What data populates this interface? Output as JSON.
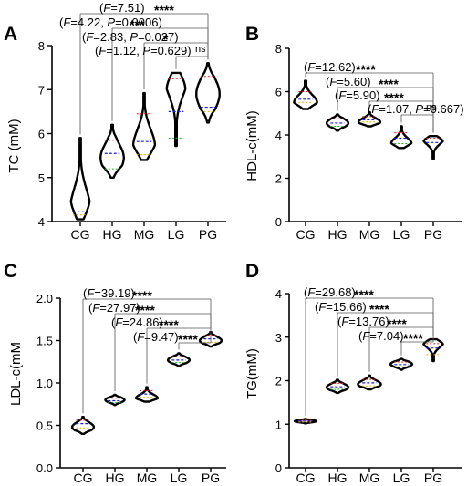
{
  "chart_data": [
    {
      "panel": "A",
      "type": "violin",
      "ylabel": "TC (mM)",
      "ylim": [
        4,
        8
      ],
      "yticks": [
        4,
        5,
        6,
        7,
        8
      ],
      "categories": [
        "CG",
        "HG",
        "MG",
        "LG",
        "PG"
      ],
      "violins": [
        {
          "min": 4.05,
          "max": 5.9,
          "median": 4.22,
          "q1": 4.15,
          "q3": 5.15,
          "peak": 4.25,
          "width": 0.75
        },
        {
          "min": 5.0,
          "max": 6.2,
          "median": 5.55,
          "q1": 5.2,
          "q3": 5.85,
          "peak": 5.45,
          "width": 0.85
        },
        {
          "min": 5.4,
          "max": 6.92,
          "median": 5.82,
          "q1": 5.52,
          "q3": 6.45,
          "peak": 5.7,
          "width": 0.8
        },
        {
          "min": 5.72,
          "max": 7.38,
          "median": 6.5,
          "q1": 5.9,
          "q3": 7.25,
          "peak": 7.3,
          "width": 0.85
        },
        {
          "min": 6.25,
          "max": 7.6,
          "median": 6.6,
          "q1": 6.5,
          "q3": 7.3,
          "peak": 6.9,
          "width": 0.85
        }
      ],
      "comparisons": [
        {
          "from": 0,
          "to": 4,
          "stat_prefix": "(",
          "f_label": "F",
          "f_text": "=7.51)",
          "sig": "****"
        },
        {
          "from": 1,
          "to": 4,
          "stat_prefix": "(",
          "f_label": "F",
          "f_text": "=4.22, ",
          "p_label": "P",
          "p_text": "=0.0006)",
          "sig": "***"
        },
        {
          "from": 2,
          "to": 4,
          "stat_prefix": "(",
          "f_label": "F",
          "f_text": "=2.83, ",
          "p_label": "P",
          "p_text": "=0.027)",
          "sig": "*"
        },
        {
          "from": 3,
          "to": 4,
          "stat_prefix": "(",
          "f_label": "F",
          "f_text": "=1.12, ",
          "p_label": "P",
          "p_text": "=0.629)",
          "sig": "ns"
        }
      ]
    },
    {
      "panel": "B",
      "type": "violin",
      "ylabel": "HDL-c(mM)",
      "ylim": [
        0,
        8
      ],
      "yticks": [
        0,
        2,
        4,
        6,
        8
      ],
      "categories": [
        "CG",
        "HG",
        "MG",
        "LG",
        "PG"
      ],
      "violins": [
        {
          "min": 5.2,
          "max": 6.5,
          "median": 5.65,
          "q1": 5.5,
          "q3": 6.0,
          "peak": 5.5,
          "width": 0.9
        },
        {
          "min": 4.2,
          "max": 4.95,
          "median": 4.55,
          "q1": 4.4,
          "q3": 4.75,
          "peak": 4.55,
          "width": 0.85
        },
        {
          "min": 4.4,
          "max": 5.05,
          "median": 4.7,
          "q1": 4.6,
          "q3": 4.85,
          "peak": 4.6,
          "width": 0.85
        },
        {
          "min": 3.4,
          "max": 4.4,
          "median": 3.85,
          "q1": 3.6,
          "q3": 4.1,
          "peak": 3.6,
          "width": 0.8
        },
        {
          "min": 2.9,
          "max": 3.95,
          "median": 3.65,
          "q1": 3.3,
          "q3": 3.85,
          "peak": 3.85,
          "width": 0.85
        }
      ],
      "comparisons": [
        {
          "from": 0,
          "to": 4,
          "stat_prefix": "(",
          "f_label": "F",
          "f_text": "=12.62)",
          "sig": "****"
        },
        {
          "from": 1,
          "to": 4,
          "stat_prefix": "(",
          "f_label": "F",
          "f_text": "=5.60)",
          "sig": "****"
        },
        {
          "from": 2,
          "to": 4,
          "stat_prefix": "(",
          "f_label": "F",
          "f_text": "=5.90)",
          "sig": "****"
        },
        {
          "from": 3,
          "to": 4,
          "stat_prefix": "(",
          "f_label": "F",
          "f_text": "=1.07, ",
          "p_label": "P",
          "p_text": "=0.667)",
          "sig": "ns"
        }
      ]
    },
    {
      "panel": "C",
      "type": "violin",
      "ylabel": "LDL-c(mM",
      "ylim": [
        0,
        2.0
      ],
      "yticks": [
        0.0,
        0.5,
        1.0,
        1.5,
        2.0
      ],
      "categories": [
        "CG",
        "HG",
        "MG",
        "LG",
        "PG"
      ],
      "violins": [
        {
          "min": 0.4,
          "max": 0.6,
          "median": 0.52,
          "q1": 0.47,
          "q3": 0.56,
          "peak": 0.48,
          "width": 0.85
        },
        {
          "min": 0.74,
          "max": 0.86,
          "median": 0.79,
          "q1": 0.77,
          "q3": 0.82,
          "peak": 0.8,
          "width": 0.75
        },
        {
          "min": 0.78,
          "max": 0.95,
          "median": 0.87,
          "q1": 0.83,
          "q3": 0.91,
          "peak": 0.82,
          "width": 0.85
        },
        {
          "min": 1.2,
          "max": 1.35,
          "median": 1.27,
          "q1": 1.24,
          "q3": 1.31,
          "peak": 1.27,
          "width": 0.85
        },
        {
          "min": 1.43,
          "max": 1.6,
          "median": 1.52,
          "q1": 1.48,
          "q3": 1.56,
          "peak": 1.5,
          "width": 0.85
        }
      ],
      "comparisons": [
        {
          "from": 0,
          "to": 4,
          "stat_prefix": "(",
          "f_label": "F",
          "f_text": "=39.19)",
          "sig": "****"
        },
        {
          "from": 1,
          "to": 4,
          "stat_prefix": "(",
          "f_label": "F",
          "f_text": "=27.97)",
          "sig": "****"
        },
        {
          "from": 2,
          "to": 4,
          "stat_prefix": "(",
          "f_label": "F",
          "f_text": "=24.86)",
          "sig": "****"
        },
        {
          "from": 3,
          "to": 4,
          "stat_prefix": "(",
          "f_label": "F",
          "f_text": "=9.47)",
          "sig": "****"
        }
      ]
    },
    {
      "panel": "D",
      "type": "violin",
      "ylabel": "TG(mM)",
      "ylim": [
        0,
        4
      ],
      "yticks": [
        0,
        1,
        2,
        3,
        4
      ],
      "categories": [
        "CG",
        "HG",
        "MG",
        "LG",
        "PG"
      ],
      "violins": [
        {
          "min": 1.02,
          "max": 1.12,
          "median": 1.07,
          "q1": 1.05,
          "q3": 1.09,
          "peak": 1.07,
          "width": 0.85
        },
        {
          "min": 1.72,
          "max": 2.02,
          "median": 1.86,
          "q1": 1.8,
          "q3": 1.94,
          "peak": 1.85,
          "width": 0.85
        },
        {
          "min": 1.8,
          "max": 2.12,
          "median": 1.95,
          "q1": 1.88,
          "q3": 2.03,
          "peak": 1.92,
          "width": 0.9
        },
        {
          "min": 2.25,
          "max": 2.5,
          "median": 2.37,
          "q1": 2.32,
          "q3": 2.43,
          "peak": 2.38,
          "width": 0.85
        },
        {
          "min": 2.45,
          "max": 2.95,
          "median": 2.75,
          "q1": 2.6,
          "q3": 2.85,
          "peak": 2.9,
          "width": 0.85
        }
      ],
      "comparisons": [
        {
          "from": 0,
          "to": 4,
          "stat_prefix": "(",
          "f_label": "F",
          "f_text": "=29.68)",
          "sig": "****"
        },
        {
          "from": 1,
          "to": 4,
          "stat_prefix": "(",
          "f_label": "F",
          "f_text": "=15.66)",
          "sig": "****"
        },
        {
          "from": 2,
          "to": 4,
          "stat_prefix": "(",
          "f_label": "F",
          "f_text": "=13.76)",
          "sig": "****"
        },
        {
          "from": 3,
          "to": 4,
          "stat_prefix": "(",
          "f_label": "F",
          "f_text": "=7.04)",
          "sig": "****"
        }
      ]
    }
  ],
  "colors": {
    "axis": "#000000",
    "outline": "#000000",
    "median": "#1f1fd6",
    "quartile_low": "#d4b400",
    "quartile_high": "#d62020",
    "quartile_alt": "#20b020"
  }
}
